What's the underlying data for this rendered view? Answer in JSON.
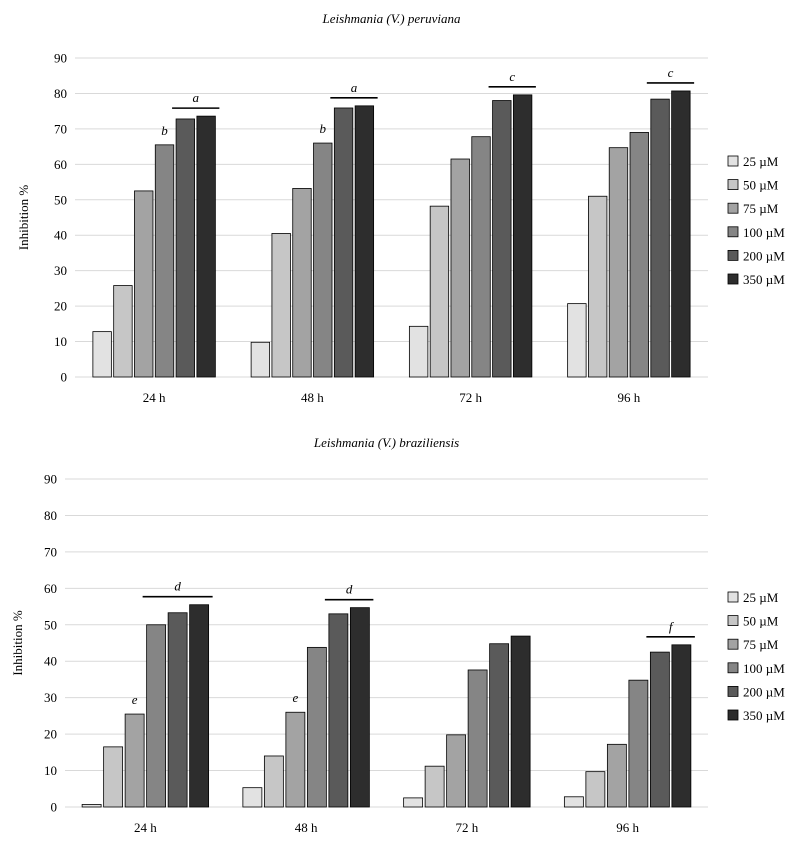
{
  "chart_data": [
    {
      "type": "bar",
      "title": "Leishmania (V.) peruviana",
      "ylabel": "Inhibition %",
      "xlabel": "",
      "ylim": [
        0,
        90
      ],
      "yticks": [
        0,
        10,
        20,
        30,
        40,
        50,
        60,
        70,
        80,
        90
      ],
      "grid": true,
      "legend_position": "right",
      "categories": [
        "24 h",
        "48 h",
        "72 h",
        "96 h"
      ],
      "series": [
        {
          "name": "25 µM",
          "color": "#e2e2e2",
          "values": [
            12.8,
            9.8,
            14.3,
            20.7
          ]
        },
        {
          "name": "50 µM",
          "color": "#c6c6c6",
          "values": [
            25.8,
            40.5,
            48.2,
            51.0
          ]
        },
        {
          "name": "75 µM",
          "color": "#a3a3a3",
          "values": [
            52.5,
            53.2,
            61.5,
            64.7
          ]
        },
        {
          "name": "100 µM",
          "color": "#858585",
          "values": [
            65.5,
            66.0,
            67.8,
            69.0
          ]
        },
        {
          "name": "200 µM",
          "color": "#5a5a5a",
          "values": [
            72.8,
            75.9,
            78.0,
            78.4
          ]
        },
        {
          "name": "350 µM",
          "color": "#2d2d2d",
          "values": [
            73.6,
            76.5,
            79.6,
            80.7
          ]
        }
      ],
      "annotations": [
        {
          "text": "a",
          "category": 0,
          "series_from": 4,
          "series_to": 5,
          "line": true
        },
        {
          "text": "b",
          "category": 0,
          "series_from": 3,
          "series_to": 3,
          "line": false
        },
        {
          "text": "a",
          "category": 1,
          "series_from": 4,
          "series_to": 5,
          "line": true
        },
        {
          "text": "b",
          "category": 1,
          "series_from": 3,
          "series_to": 3,
          "line": false
        },
        {
          "text": "c",
          "category": 2,
          "series_from": 4,
          "series_to": 5,
          "line": true
        },
        {
          "text": "c",
          "category": 3,
          "series_from": 4,
          "series_to": 5,
          "line": true
        }
      ]
    },
    {
      "type": "bar",
      "title": "Leishmania (V.) braziliensis",
      "ylabel": "Inhibition %",
      "xlabel": "",
      "ylim": [
        0,
        90
      ],
      "yticks": [
        0,
        10,
        20,
        30,
        40,
        50,
        60,
        70,
        80,
        90
      ],
      "grid": true,
      "legend_position": "right",
      "categories": [
        "24 h",
        "48 h",
        "72 h",
        "96 h"
      ],
      "series": [
        {
          "name": "25 µM",
          "color": "#e2e2e2",
          "values": [
            0.7,
            5.3,
            2.5,
            2.8
          ]
        },
        {
          "name": "50 µM",
          "color": "#c6c6c6",
          "values": [
            16.5,
            14.0,
            11.2,
            9.7
          ]
        },
        {
          "name": "75 µM",
          "color": "#a3a3a3",
          "values": [
            25.5,
            26.0,
            19.8,
            17.2
          ]
        },
        {
          "name": "100 µM",
          "color": "#858585",
          "values": [
            50.0,
            43.8,
            37.6,
            34.8
          ]
        },
        {
          "name": "200 µM",
          "color": "#5a5a5a",
          "values": [
            53.3,
            53.0,
            44.8,
            42.5
          ]
        },
        {
          "name": "350 µM",
          "color": "#2d2d2d",
          "values": [
            55.5,
            54.7,
            46.9,
            44.5
          ]
        }
      ],
      "annotations": [
        {
          "text": "d",
          "category": 0,
          "series_from": 3,
          "series_to": 5,
          "line": true
        },
        {
          "text": "e",
          "category": 0,
          "series_from": 2,
          "series_to": 2,
          "line": false
        },
        {
          "text": "d",
          "category": 1,
          "series_from": 4,
          "series_to": 5,
          "line": true
        },
        {
          "text": "e",
          "category": 1,
          "series_from": 2,
          "series_to": 2,
          "line": false
        },
        {
          "text": "f",
          "category": 3,
          "series_from": 4,
          "series_to": 5,
          "line": true
        }
      ]
    }
  ]
}
